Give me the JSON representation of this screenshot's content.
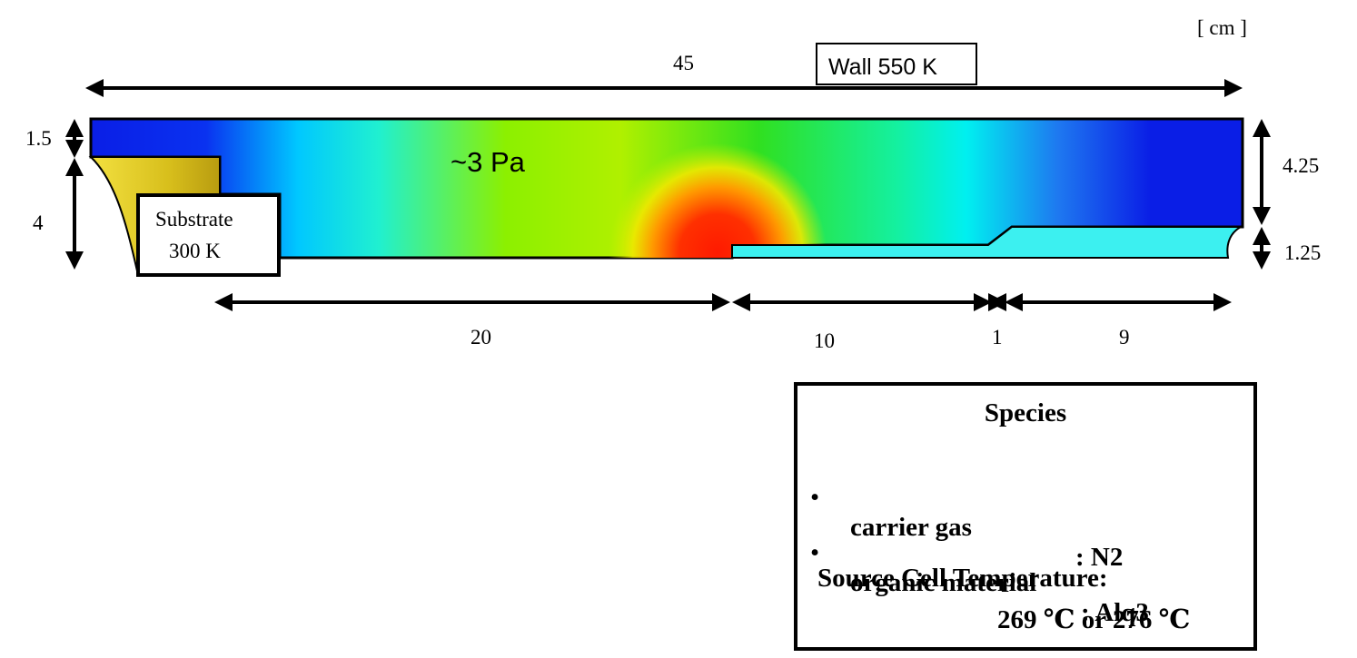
{
  "unit_label": "[ cm ]",
  "wall_label": "Wall 550 K",
  "pressure_label": "~3 Pa",
  "substrate": {
    "line1": "Substrate",
    "line2": "300 K"
  },
  "dimensions": {
    "total_length": "45",
    "top_gap": "1.5",
    "substrate_height": "4",
    "right_upper_height": "4.25",
    "right_lower_height": "1.25",
    "seg1": "20",
    "seg2": "10",
    "seg3": "1",
    "seg4": "9"
  },
  "species_box": {
    "title": "Species",
    "items": [
      {
        "label": "carrier gas",
        "value": ": N2"
      },
      {
        "label": "organic material",
        "value": ": Alq3"
      }
    ],
    "bullet": "•",
    "temp_title": "Source Cell Temperature:",
    "temp_values": "269 ℃  or 276 ℃"
  },
  "colors": {
    "cold": "#0a1ee6",
    "cyan": "#00f0f0",
    "green": "#2ee01a",
    "yellow": "#e8f000",
    "hot": "#ff1a00",
    "substrate_fill": "#e6d02a",
    "source_fill": "#3cf0f0"
  }
}
